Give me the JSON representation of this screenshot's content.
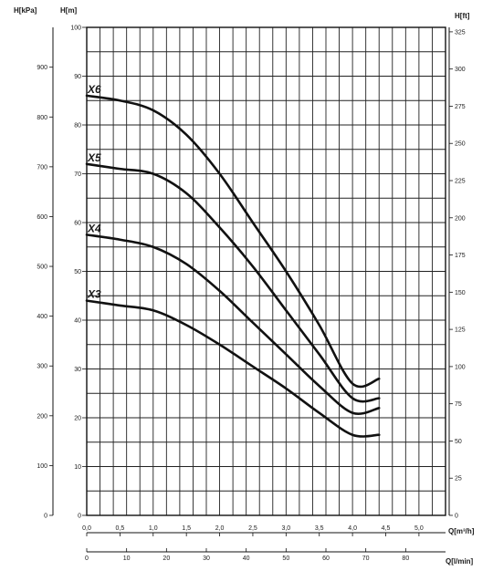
{
  "chart_data": {
    "type": "line",
    "axes": {
      "left_kpa": {
        "label": "H[kPa]",
        "ticks": [
          "0",
          "100",
          "200",
          "300",
          "400",
          "500",
          "600",
          "700",
          "800",
          "900"
        ],
        "range": [
          0,
          980
        ]
      },
      "left_m": {
        "label": "H[m]",
        "ticks": [
          "0",
          "10",
          "20",
          "30",
          "40",
          "50",
          "60",
          "70",
          "80",
          "90",
          "100"
        ],
        "range": [
          0,
          100
        ]
      },
      "right_ft": {
        "label": "H[ft]",
        "ticks": [
          "0",
          "25",
          "50",
          "75",
          "100",
          "125",
          "150",
          "175",
          "200",
          "225",
          "250",
          "275",
          "300",
          "325"
        ],
        "range": [
          0,
          328
        ]
      },
      "bottom_m3h": {
        "label": "Q[m³/h]",
        "ticks": [
          "0,0",
          "0,5",
          "1,0",
          "1,5",
          "2,0",
          "2,5",
          "3,0",
          "3,5",
          "4,0",
          "4,5",
          "5,0"
        ],
        "range": [
          0,
          5.4
        ]
      },
      "bottom_lmin": {
        "label": "Q[l/min]",
        "ticks": [
          "0",
          "10",
          "20",
          "30",
          "40",
          "50",
          "60",
          "70",
          "80"
        ],
        "range": [
          0,
          90
        ]
      }
    },
    "grid": true,
    "xlabel": "Q[m³/h]",
    "ylabel": "H[m]",
    "xlim": [
      0,
      5.4
    ],
    "ylim": [
      0,
      100
    ],
    "series": [
      {
        "name": "X6",
        "x": [
          0,
          0.5,
          1.0,
          1.5,
          2.0,
          2.5,
          3.0,
          3.5,
          4.0,
          4.4
        ],
        "y": [
          86,
          85,
          83,
          78,
          70,
          60,
          50,
          39,
          27,
          28
        ]
      },
      {
        "name": "X5",
        "x": [
          0,
          0.5,
          1.0,
          1.5,
          2.0,
          2.5,
          3.0,
          3.5,
          4.0,
          4.4
        ],
        "y": [
          72,
          71,
          70,
          66,
          59,
          51,
          42,
          33,
          24,
          24
        ]
      },
      {
        "name": "X4",
        "x": [
          0,
          0.5,
          1.0,
          1.5,
          2.0,
          2.5,
          3.0,
          3.5,
          4.0,
          4.4
        ],
        "y": [
          57.5,
          56.5,
          55,
          51.5,
          46,
          39.5,
          33,
          26.5,
          21,
          22
        ]
      },
      {
        "name": "X3",
        "x": [
          0,
          0.5,
          1.0,
          1.5,
          2.0,
          2.5,
          3.0,
          3.5,
          4.0,
          4.4
        ],
        "y": [
          44,
          43,
          42,
          39,
          35,
          30.5,
          26,
          21,
          16.5,
          16.5
        ]
      }
    ]
  }
}
